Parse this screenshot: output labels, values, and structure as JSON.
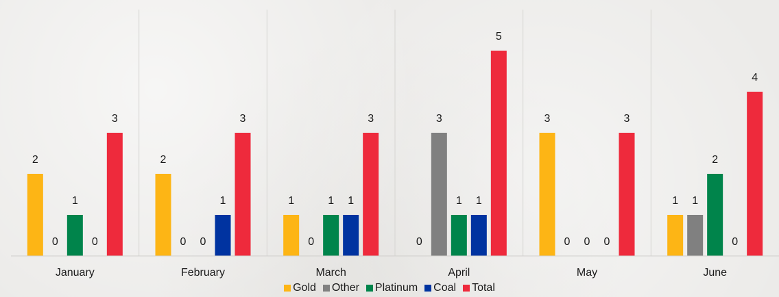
{
  "chart_data": {
    "type": "bar",
    "categories": [
      "January",
      "February",
      "March",
      "April",
      "May",
      "June"
    ],
    "series": [
      {
        "name": "Gold",
        "color": "#FDB515",
        "values": [
          2,
          2,
          1,
          0,
          3,
          1
        ]
      },
      {
        "name": "Other",
        "color": "#808080",
        "values": [
          0,
          0,
          0,
          3,
          0,
          1
        ]
      },
      {
        "name": "Platinum",
        "color": "#00844B",
        "values": [
          1,
          0,
          1,
          1,
          0,
          2
        ]
      },
      {
        "name": "Coal",
        "color": "#0033A0",
        "values": [
          0,
          1,
          1,
          1,
          0,
          0
        ]
      },
      {
        "name": "Total",
        "color": "#EE2A3C",
        "values": [
          3,
          3,
          3,
          5,
          3,
          4
        ]
      }
    ],
    "title": "",
    "xlabel": "",
    "ylabel": "",
    "ylim": [
      0,
      6
    ],
    "grid": "vertical category separators",
    "legend": "bottom-center",
    "data_labels": true
  }
}
